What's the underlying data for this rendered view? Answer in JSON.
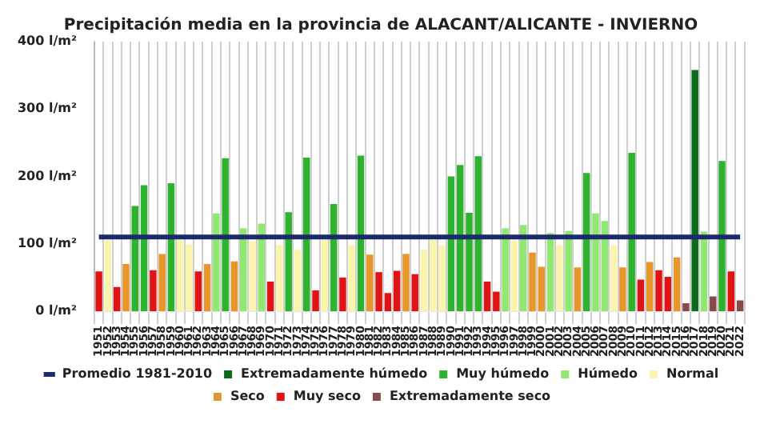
{
  "chart_data": {
    "type": "bar",
    "title": "Precipitación media en la provincia de ALACANT/ALICANTE - INVIERNO",
    "categories": [
      "1951",
      "1952",
      "1953",
      "1954",
      "1955",
      "1956",
      "1957",
      "1958",
      "1959",
      "1960",
      "1961",
      "1962",
      "1963",
      "1964",
      "1965",
      "1966",
      "1967",
      "1968",
      "1969",
      "1970",
      "1971",
      "1972",
      "1973",
      "1974",
      "1975",
      "1976",
      "1977",
      "1978",
      "1979",
      "1980",
      "1981",
      "1982",
      "1983",
      "1984",
      "1985",
      "1986",
      "1987",
      "1988",
      "1989",
      "1990",
      "1991",
      "1992",
      "1993",
      "1994",
      "1995",
      "1996",
      "1997",
      "1998",
      "1999",
      "2000",
      "2001",
      "2002",
      "2003",
      "2004",
      "2005",
      "2006",
      "2007",
      "2008",
      "2009",
      "2010",
      "2011",
      "2012",
      "2013",
      "2014",
      "2015",
      "2016",
      "2017",
      "2018",
      "2019",
      "2020",
      "2021",
      "2022"
    ],
    "stacked": true,
    "series": [
      {
        "name": "Extremadamente húmedo",
        "color": "#0b6b1a",
        "values": [
          null,
          null,
          null,
          null,
          null,
          null,
          null,
          null,
          null,
          null,
          null,
          null,
          null,
          null,
          null,
          null,
          null,
          null,
          null,
          null,
          null,
          null,
          null,
          null,
          null,
          null,
          null,
          null,
          null,
          null,
          null,
          null,
          null,
          null,
          null,
          null,
          null,
          null,
          null,
          null,
          null,
          null,
          null,
          null,
          null,
          null,
          null,
          null,
          null,
          null,
          null,
          null,
          null,
          null,
          null,
          null,
          null,
          null,
          null,
          null,
          null,
          null,
          null,
          null,
          null,
          null,
          358,
          null,
          null,
          null,
          null,
          null
        ]
      },
      {
        "name": "Muy húmedo",
        "color": "#2db32d",
        "values": [
          null,
          null,
          null,
          null,
          156,
          187,
          null,
          null,
          190,
          null,
          null,
          null,
          null,
          null,
          227,
          null,
          null,
          null,
          null,
          null,
          null,
          147,
          null,
          228,
          null,
          null,
          159,
          null,
          null,
          231,
          null,
          null,
          null,
          null,
          null,
          null,
          null,
          null,
          null,
          200,
          217,
          146,
          230,
          null,
          null,
          null,
          null,
          null,
          null,
          null,
          null,
          null,
          null,
          null,
          205,
          null,
          null,
          null,
          null,
          235,
          null,
          null,
          null,
          null,
          null,
          null,
          null,
          null,
          null,
          223,
          null,
          null
        ]
      },
      {
        "name": "Húmedo",
        "color": "#90e870",
        "values": [
          null,
          null,
          null,
          null,
          null,
          null,
          null,
          null,
          null,
          null,
          null,
          null,
          null,
          145,
          null,
          null,
          123,
          null,
          130,
          null,
          null,
          null,
          null,
          null,
          null,
          null,
          null,
          null,
          null,
          null,
          null,
          null,
          null,
          null,
          null,
          null,
          null,
          null,
          null,
          null,
          null,
          null,
          null,
          null,
          null,
          123,
          null,
          128,
          null,
          null,
          116,
          null,
          119,
          null,
          null,
          145,
          134,
          null,
          null,
          null,
          null,
          null,
          null,
          null,
          null,
          null,
          null,
          118,
          null,
          null,
          null,
          null
        ]
      },
      {
        "name": "Normal",
        "color": "#faf4ac",
        "values": [
          null,
          106,
          null,
          null,
          null,
          null,
          null,
          null,
          null,
          106,
          99,
          null,
          null,
          null,
          null,
          null,
          null,
          104,
          null,
          null,
          98,
          null,
          91,
          null,
          null,
          106,
          null,
          null,
          98,
          null,
          null,
          null,
          null,
          null,
          null,
          null,
          91,
          106,
          98,
          null,
          null,
          null,
          null,
          null,
          null,
          null,
          105,
          null,
          null,
          null,
          null,
          98,
          null,
          null,
          null,
          null,
          null,
          98,
          null,
          null,
          null,
          null,
          null,
          null,
          null,
          null,
          null,
          null,
          null,
          null,
          null,
          null
        ]
      },
      {
        "name": "Seco",
        "color": "#e8962a",
        "values": [
          null,
          null,
          null,
          70,
          null,
          null,
          null,
          85,
          null,
          null,
          null,
          null,
          70,
          null,
          null,
          74,
          null,
          null,
          null,
          null,
          null,
          null,
          null,
          null,
          null,
          null,
          null,
          null,
          null,
          null,
          84,
          null,
          null,
          null,
          85,
          null,
          null,
          null,
          null,
          null,
          null,
          null,
          null,
          null,
          null,
          null,
          null,
          null,
          87,
          66,
          null,
          null,
          null,
          65,
          null,
          null,
          null,
          null,
          65,
          null,
          null,
          73,
          null,
          null,
          80,
          null,
          null,
          null,
          null,
          null,
          null,
          null
        ]
      },
      {
        "name": "Muy seco",
        "color": "#e01414",
        "values": [
          59,
          null,
          36,
          null,
          null,
          null,
          61,
          null,
          null,
          null,
          null,
          59,
          null,
          null,
          null,
          null,
          null,
          null,
          null,
          44,
          null,
          null,
          null,
          null,
          31,
          null,
          null,
          50,
          null,
          null,
          null,
          58,
          27,
          60,
          null,
          55,
          null,
          null,
          null,
          null,
          null,
          null,
          null,
          44,
          29,
          null,
          null,
          null,
          null,
          null,
          null,
          null,
          null,
          null,
          null,
          null,
          null,
          null,
          null,
          null,
          47,
          null,
          61,
          51,
          null,
          null,
          null,
          null,
          null,
          null,
          59,
          null
        ]
      },
      {
        "name": "Extremadamente seco",
        "color": "#8b4a4a",
        "values": [
          null,
          null,
          null,
          null,
          null,
          null,
          null,
          null,
          null,
          null,
          null,
          null,
          null,
          null,
          null,
          null,
          null,
          null,
          null,
          null,
          null,
          null,
          null,
          null,
          null,
          null,
          null,
          null,
          null,
          null,
          null,
          null,
          null,
          null,
          null,
          null,
          null,
          null,
          null,
          null,
          null,
          null,
          null,
          null,
          null,
          null,
          null,
          null,
          null,
          null,
          null,
          null,
          null,
          null,
          null,
          null,
          null,
          null,
          null,
          null,
          null,
          null,
          null,
          null,
          null,
          12,
          null,
          null,
          22,
          null,
          null,
          16
        ]
      },
      {
        "name": "Promedio 1981-2010",
        "type": "line",
        "color": "#1a2a6c",
        "values": [
          110,
          110,
          110,
          110,
          110,
          110,
          110,
          110,
          110,
          110,
          110,
          110,
          110,
          110,
          110,
          110,
          110,
          110,
          110,
          110,
          110,
          110,
          110,
          110,
          110,
          110,
          110,
          110,
          110,
          110,
          110,
          110,
          110,
          110,
          110,
          110,
          110,
          110,
          110,
          110,
          110,
          110,
          110,
          110,
          110,
          110,
          110,
          110,
          110,
          110,
          110,
          110,
          110,
          110,
          110,
          110,
          110,
          110,
          110,
          110,
          110,
          110,
          110,
          110,
          110,
          110,
          110,
          110,
          110,
          110,
          110,
          110
        ]
      }
    ],
    "ylim": [
      0,
      400
    ],
    "yticks": [
      {
        "value": 0,
        "label": "0 l/m²"
      },
      {
        "value": 100,
        "label": "100 l/m²"
      },
      {
        "value": 200,
        "label": "200 l/m²"
      },
      {
        "value": 300,
        "label": "300 l/m²"
      },
      {
        "value": 400,
        "label": "400 l/m²"
      }
    ],
    "grid": "x",
    "legend": "bottom",
    "marker": "none"
  }
}
